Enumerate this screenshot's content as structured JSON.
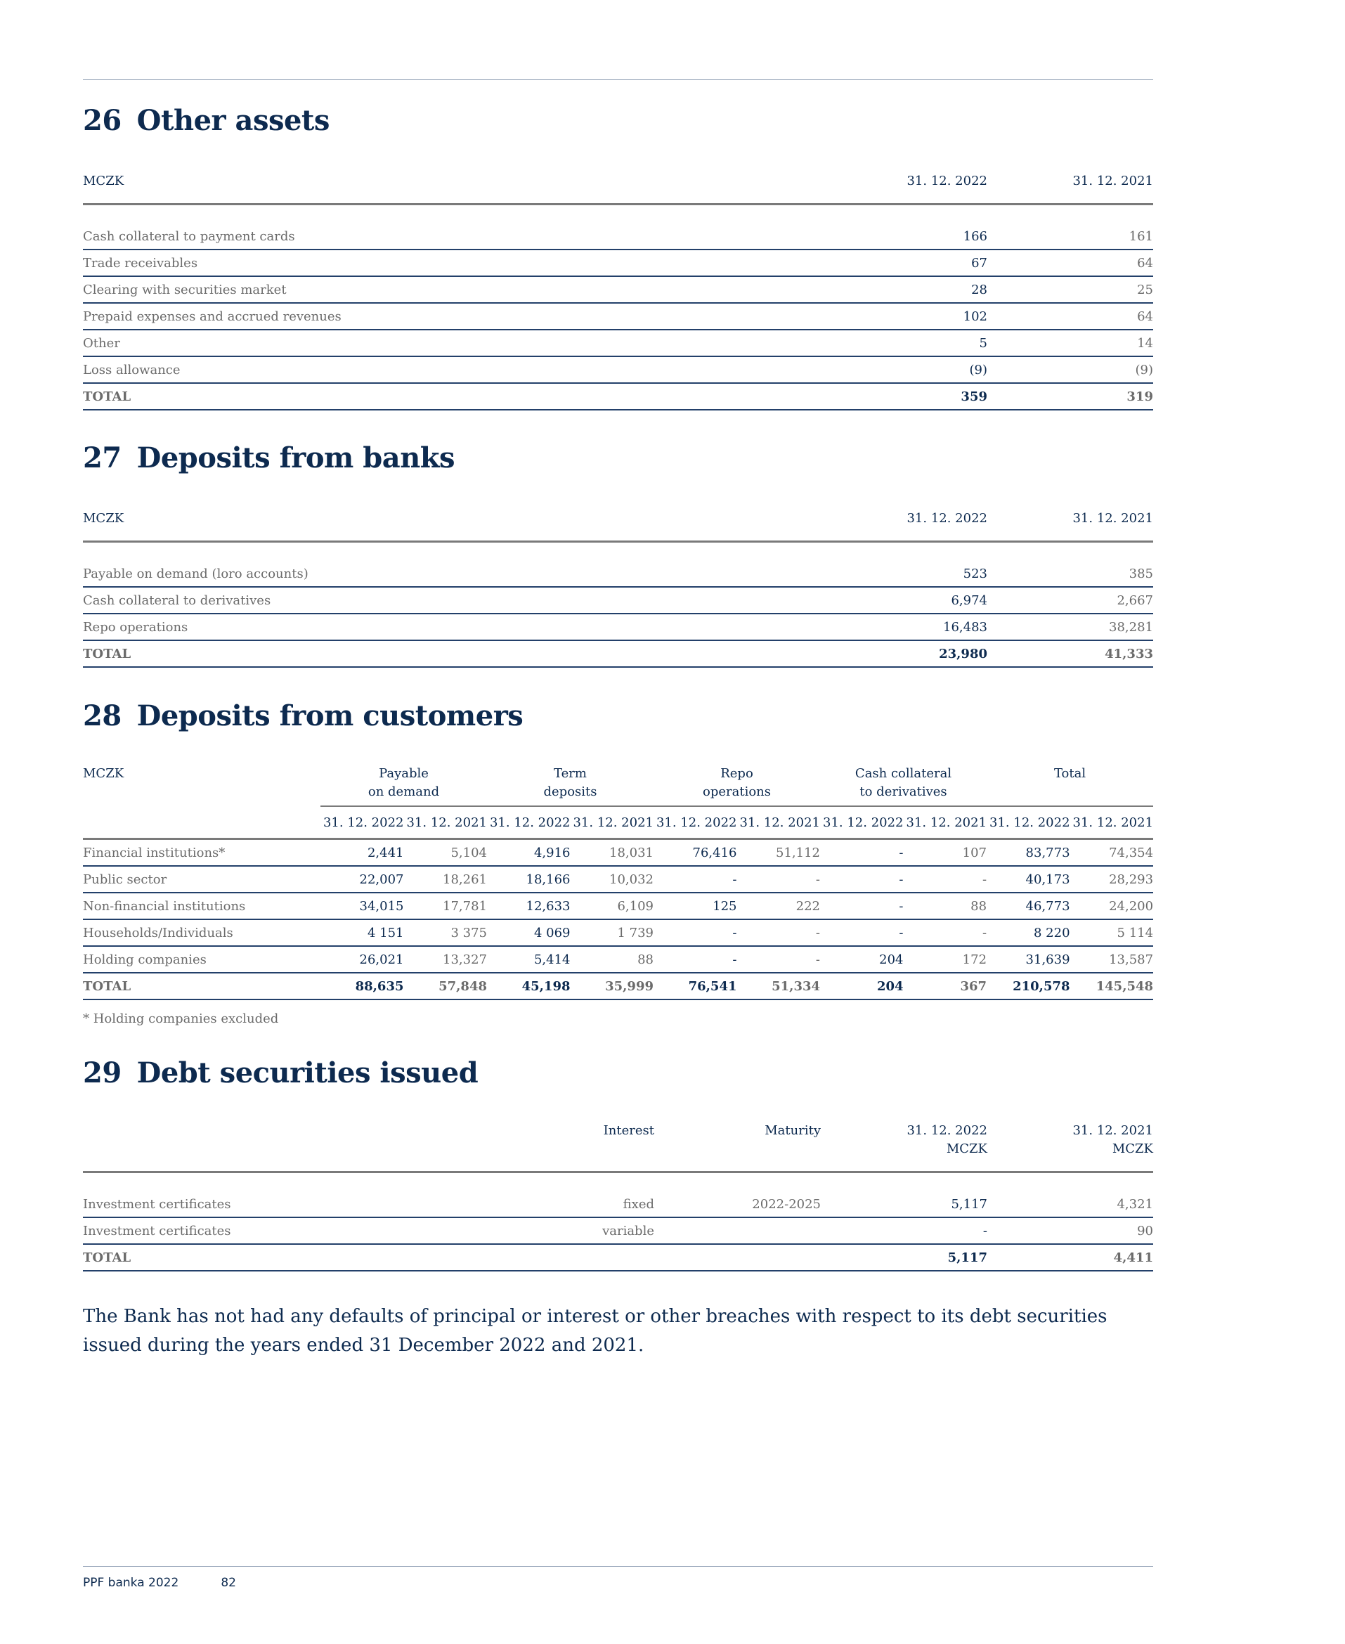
{
  "other_assets": {
    "number": "26",
    "title": "Other assets",
    "header": {
      "unit": "MCZK",
      "col1": "31. 12. 2022",
      "col2": "31. 12. 2021"
    },
    "rows": [
      {
        "label": "Cash collateral to payment cards",
        "v2022": "166",
        "v2021": "161"
      },
      {
        "label": "Trade receivables",
        "v2022": "67",
        "v2021": "64"
      },
      {
        "label": "Clearing with securities market",
        "v2022": "28",
        "v2021": "25"
      },
      {
        "label": "Prepaid expenses and accrued revenues",
        "v2022": "102",
        "v2021": "64"
      },
      {
        "label": "Other",
        "v2022": "5",
        "v2021": "14"
      },
      {
        "label": "Loss allowance",
        "v2022": "(9)",
        "v2021": "(9)"
      }
    ],
    "total": {
      "label": "TOTAL",
      "v2022": "359",
      "v2021": "319"
    }
  },
  "deposits_banks": {
    "number": "27",
    "title": "Deposits from banks",
    "header": {
      "unit": "MCZK",
      "col1": "31. 12. 2022",
      "col2": "31. 12. 2021"
    },
    "rows": [
      {
        "label": "Payable on demand (loro accounts)",
        "v2022": "523",
        "v2021": "385"
      },
      {
        "label": "Cash collateral to derivatives",
        "v2022": "6,974",
        "v2021": "2,667"
      },
      {
        "label": "Repo operations",
        "v2022": "16,483",
        "v2021": "38,281"
      }
    ],
    "total": {
      "label": "TOTAL",
      "v2022": "23,980",
      "v2021": "41,333"
    }
  },
  "deposits_customers": {
    "number": "28",
    "title": "Deposits from customers",
    "unit": "MCZK",
    "groups": [
      {
        "line1": "Payable",
        "line2": "on demand"
      },
      {
        "line1": "Term",
        "line2": "deposits"
      },
      {
        "line1": "Repo",
        "line2": "operations"
      },
      {
        "line1": "Cash collateral",
        "line2": "to derivatives"
      },
      {
        "line1": "Total",
        "line2": ""
      }
    ],
    "dates": [
      "31. 12. 2022",
      "31. 12. 2021",
      "31. 12. 2022",
      "31. 12. 2021",
      "31. 12. 2022",
      "31. 12. 2021",
      "31. 12. 2022",
      "31. 12. 2021",
      "31. 12. 2022",
      "31. 12. 2021"
    ],
    "rows": [
      {
        "label": "Financial institutions*",
        "values": [
          "2,441",
          "5,104",
          "4,916",
          "18,031",
          "76,416",
          "51,112",
          "-",
          "107",
          "83,773",
          "74,354"
        ]
      },
      {
        "label": "Public sector",
        "values": [
          "22,007",
          "18,261",
          "18,166",
          "10,032",
          "-",
          "-",
          "-",
          "-",
          "40,173",
          "28,293"
        ]
      },
      {
        "label": "Non-financial institutions",
        "values": [
          "34,015",
          "17,781",
          "12,633",
          "6,109",
          "125",
          "222",
          "-",
          "88",
          "46,773",
          "24,200"
        ]
      },
      {
        "label": "Households/Individuals",
        "values": [
          "4 151",
          "3 375",
          "4 069",
          "1 739",
          "-",
          "-",
          "-",
          "-",
          "8 220",
          "5 114"
        ]
      },
      {
        "label": "Holding companies",
        "values": [
          "26,021",
          "13,327",
          "5,414",
          "88",
          "-",
          "-",
          "204",
          "172",
          "31,639",
          "13,587"
        ]
      }
    ],
    "total": {
      "label": "TOTAL",
      "values": [
        "88,635",
        "57,848",
        "45,198",
        "35,999",
        "76,541",
        "51,334",
        "204",
        "367",
        "210,578",
        "145,548"
      ]
    },
    "footnote": "* Holding companies excluded"
  },
  "debt_securities": {
    "number": "29",
    "title": "Debt securities issued",
    "header": {
      "interest": "Interest",
      "maturity": "Maturity",
      "col1": "31. 12. 2022",
      "col1_unit": "MCZK",
      "col2": "31. 12. 2021",
      "col2_unit": "MCZK"
    },
    "rows": [
      {
        "label": "Investment certificates",
        "interest": "fixed",
        "maturity": "2022-2025",
        "v2022": "5,117",
        "v2021": "4,321"
      },
      {
        "label": "Investment certificates",
        "interest": "variable",
        "maturity": "",
        "v2022": "-",
        "v2021": "90"
      }
    ],
    "total": {
      "label": "TOTAL",
      "v2022": "5,117",
      "v2021": "4,411"
    },
    "paragraph": "The Bank has not had any defaults of principal or interest or other breaches with respect to its debt securities issued during the years ended 31 December 2022 and 2021."
  },
  "footer": {
    "publication": "PPF banka 2022",
    "page": "82"
  }
}
